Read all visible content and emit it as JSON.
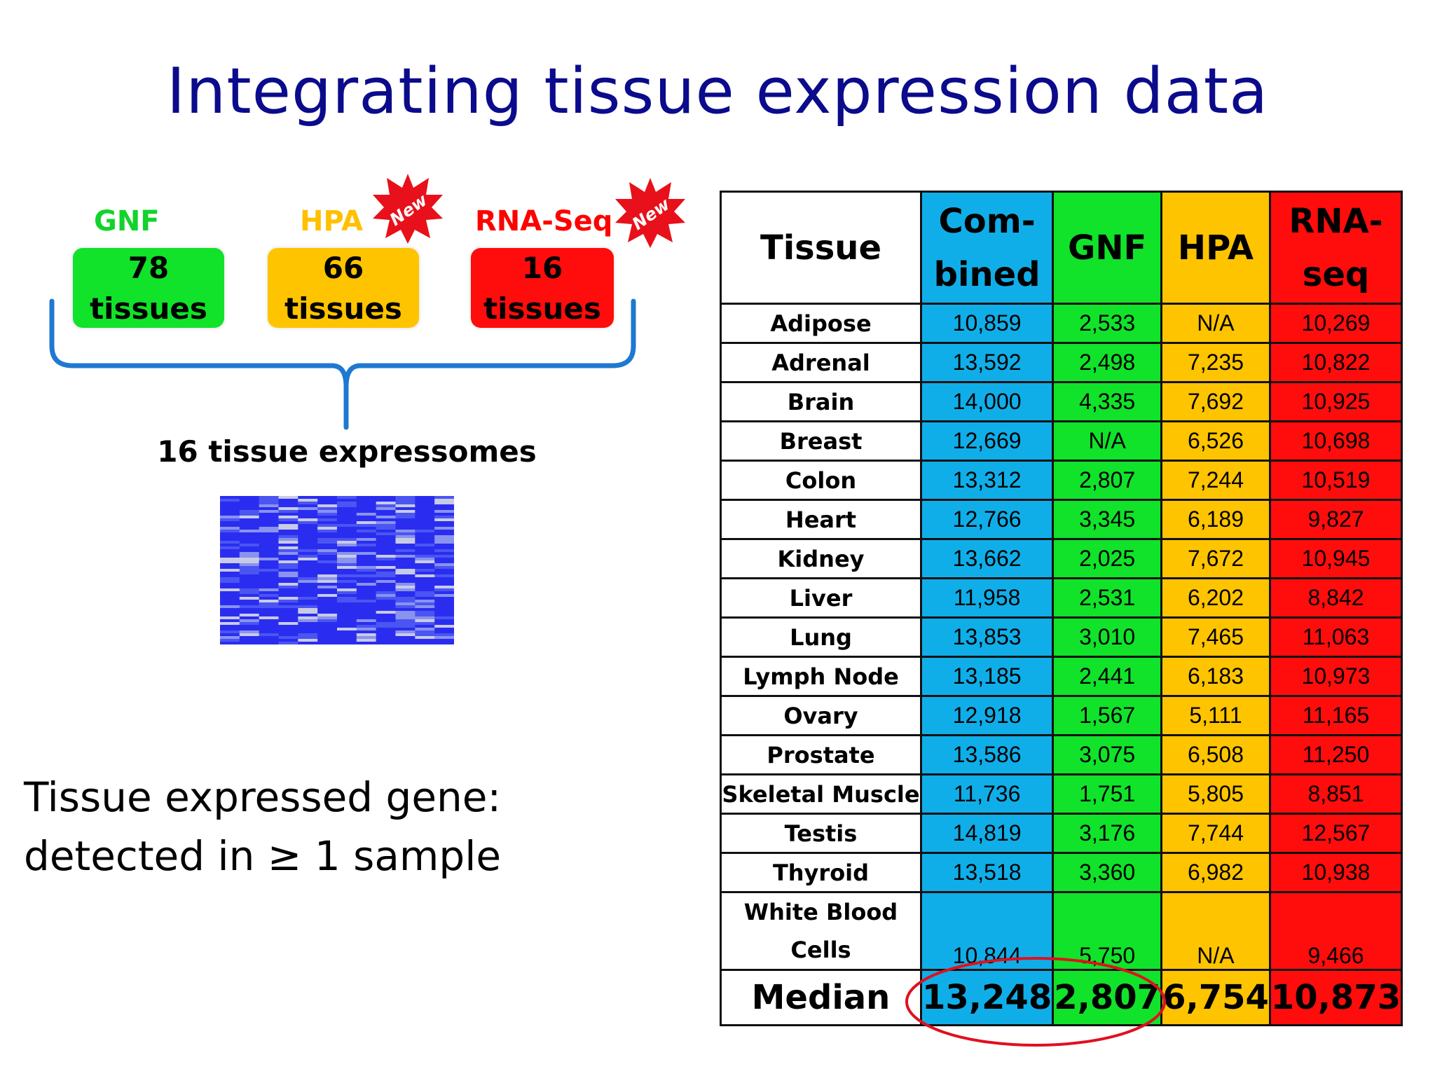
{
  "slide": {
    "title": "Integrating tissue expression data",
    "sources": [
      {
        "label": "GNF",
        "count": "78",
        "unit": "tissues",
        "color": "#11e22a",
        "label_color": "#11d42a",
        "new": false
      },
      {
        "label": "HPA",
        "count": "66",
        "unit": "tissues",
        "color": "#ffc400",
        "label_color": "#ffc000",
        "new": true
      },
      {
        "label": "RNA-Seq",
        "count": "16",
        "unit": "tissues",
        "color": "#ff0c0c",
        "label_color": "#ff0000",
        "new": true
      }
    ],
    "new_badge": "New",
    "expressomes": "16 tissue expressomes",
    "note_line1": "Tissue expressed gene:",
    "note_line2": "detected in ≥ 1 sample"
  },
  "table": {
    "headers": {
      "tissue": "Tissue",
      "combined_1": "Com-",
      "combined_2": "bined",
      "gnf": "GNF",
      "hpa": "HPA",
      "rnaseq_1": "RNA-",
      "rnaseq_2": "seq"
    },
    "rows": [
      {
        "tissue": "Adipose",
        "combined": "10,859",
        "gnf": "2,533",
        "hpa": "N/A",
        "rnaseq": "10,269"
      },
      {
        "tissue": "Adrenal",
        "combined": "13,592",
        "gnf": "2,498",
        "hpa": "7,235",
        "rnaseq": "10,822"
      },
      {
        "tissue": "Brain",
        "combined": "14,000",
        "gnf": "4,335",
        "hpa": "7,692",
        "rnaseq": "10,925"
      },
      {
        "tissue": "Breast",
        "combined": "12,669",
        "gnf": "N/A",
        "hpa": "6,526",
        "rnaseq": "10,698"
      },
      {
        "tissue": "Colon",
        "combined": "13,312",
        "gnf": "2,807",
        "hpa": "7,244",
        "rnaseq": "10,519"
      },
      {
        "tissue": "Heart",
        "combined": "12,766",
        "gnf": "3,345",
        "hpa": "6,189",
        "rnaseq": "9,827"
      },
      {
        "tissue": "Kidney",
        "combined": "13,662",
        "gnf": "2,025",
        "hpa": "7,672",
        "rnaseq": "10,945"
      },
      {
        "tissue": "Liver",
        "combined": "11,958",
        "gnf": "2,531",
        "hpa": "6,202",
        "rnaseq": "8,842"
      },
      {
        "tissue": "Lung",
        "combined": "13,853",
        "gnf": "3,010",
        "hpa": "7,465",
        "rnaseq": "11,063"
      },
      {
        "tissue": "Lymph Node",
        "combined": "13,185",
        "gnf": "2,441",
        "hpa": "6,183",
        "rnaseq": "10,973"
      },
      {
        "tissue": "Ovary",
        "combined": "12,918",
        "gnf": "1,567",
        "hpa": "5,111",
        "rnaseq": "11,165"
      },
      {
        "tissue": "Prostate",
        "combined": "13,586",
        "gnf": "3,075",
        "hpa": "6,508",
        "rnaseq": "11,250"
      },
      {
        "tissue": "Skeletal Muscle",
        "combined": "11,736",
        "gnf": "1,751",
        "hpa": "5,805",
        "rnaseq": "8,851"
      },
      {
        "tissue": "Testis",
        "combined": "14,819",
        "gnf": "3,176",
        "hpa": "7,744",
        "rnaseq": "12,567"
      },
      {
        "tissue": "Thyroid",
        "combined": "13,518",
        "gnf": "3,360",
        "hpa": "6,982",
        "rnaseq": "10,938"
      }
    ],
    "wbc": {
      "tissue_1": "White Blood",
      "tissue_2": "Cells",
      "combined": "10,844",
      "gnf": "5,750",
      "hpa": "N/A",
      "rnaseq": "9,466"
    },
    "median": {
      "label": "Median",
      "combined": "13,248",
      "gnf": "2,807",
      "hpa": "6,754",
      "rnaseq": "10,873"
    },
    "highlight_color": "#e0101e"
  }
}
